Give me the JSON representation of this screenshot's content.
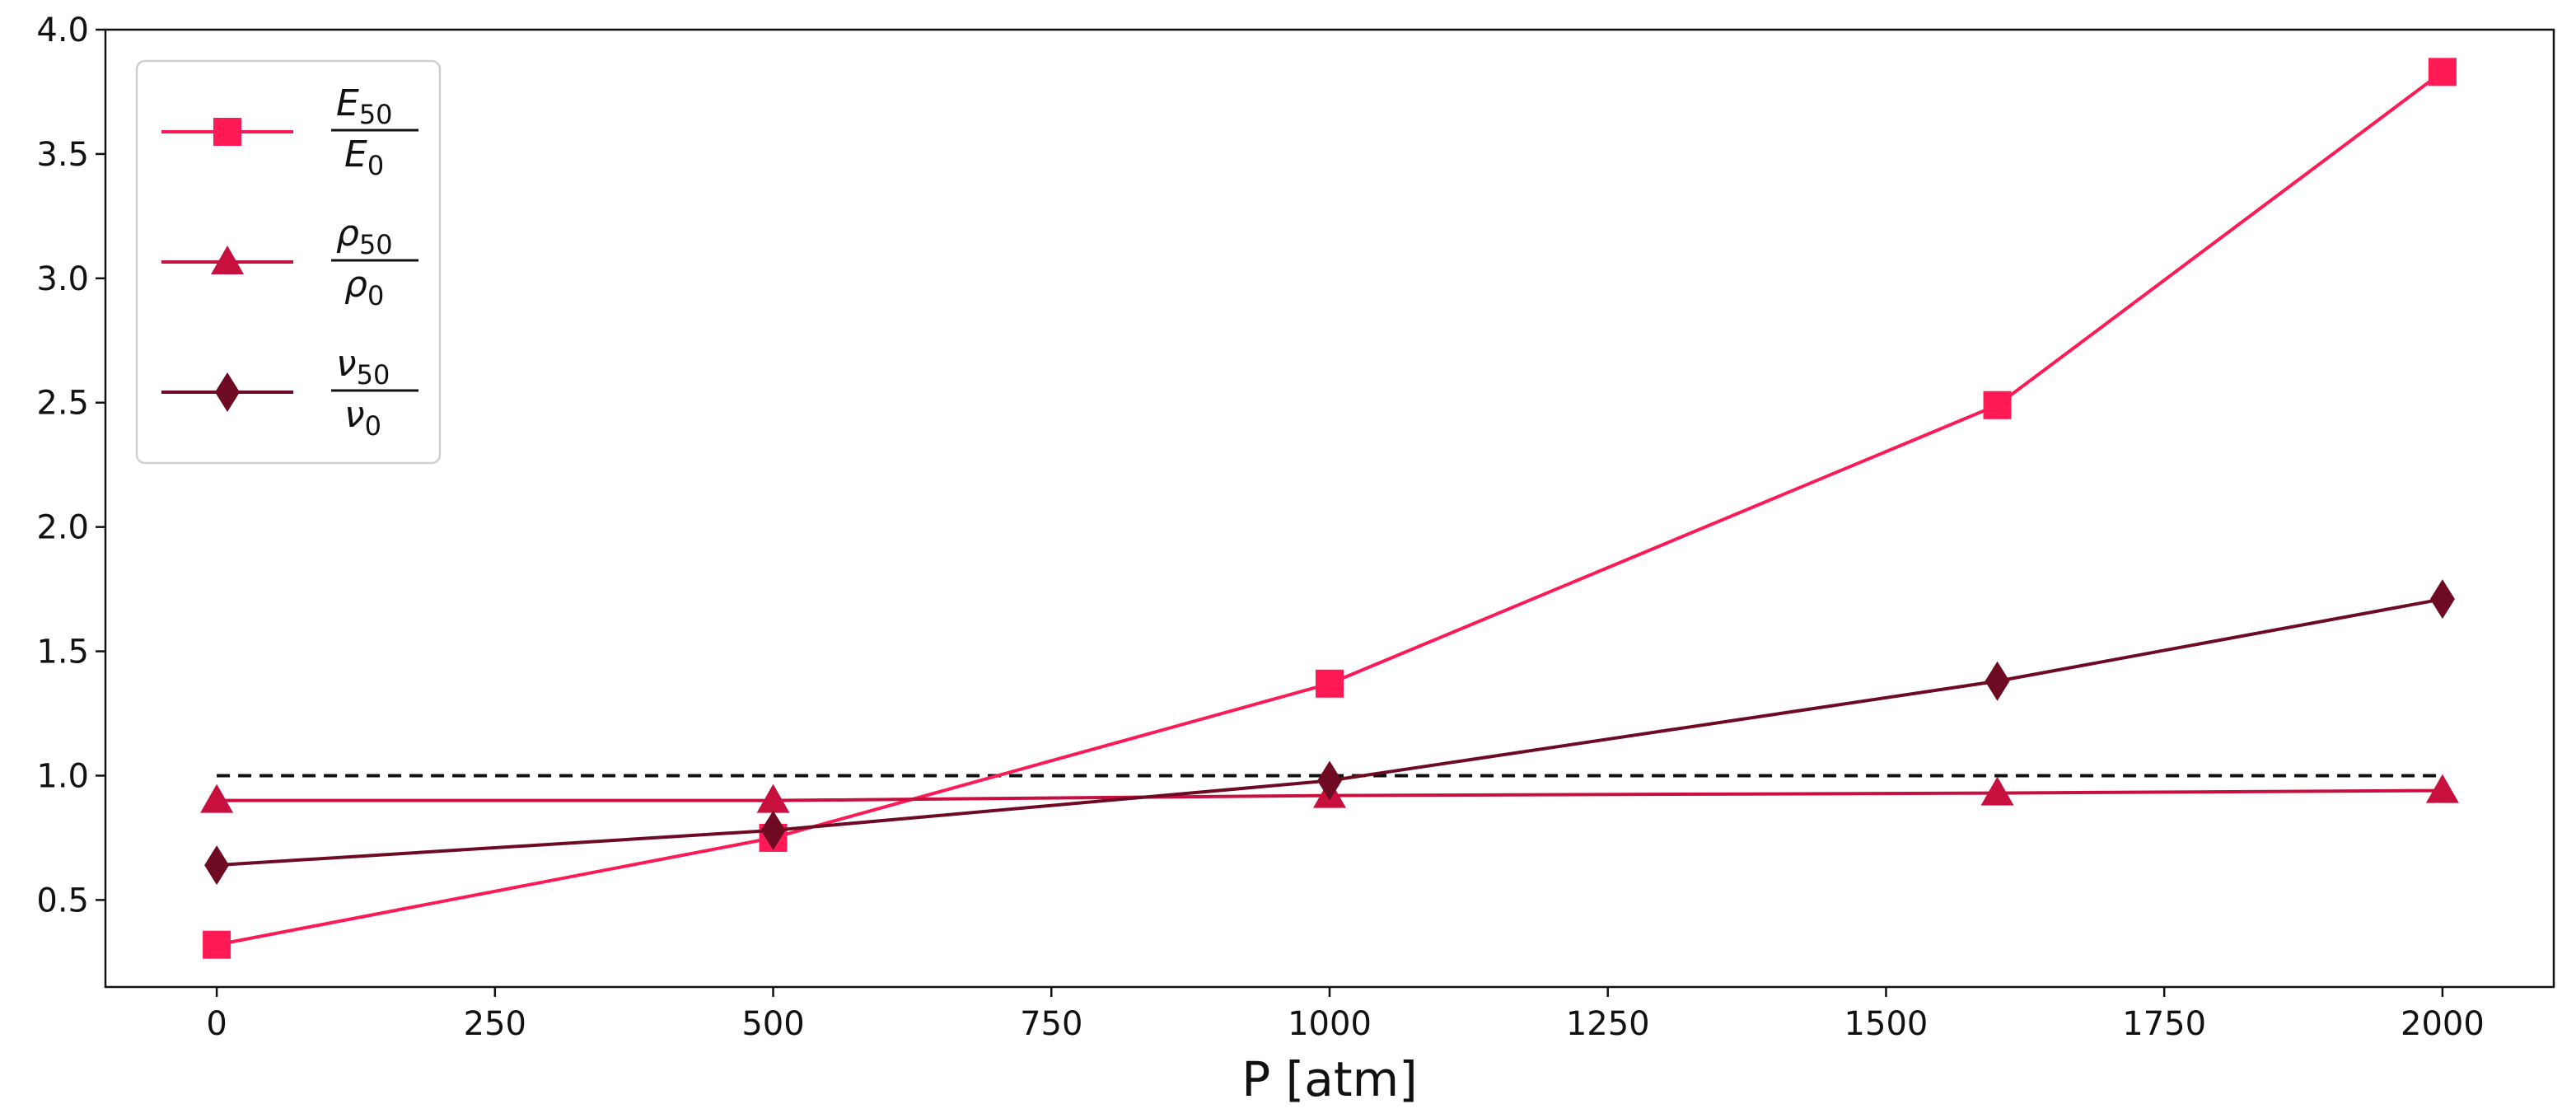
{
  "chart_data": {
    "type": "line",
    "xlabel": "P [atm]",
    "ylabel": "",
    "title": "",
    "xlim": [
      -100,
      2100
    ],
    "ylim": [
      0.15,
      4.0
    ],
    "x_ticks": [
      0,
      250,
      500,
      750,
      1000,
      1250,
      1500,
      1750,
      2000
    ],
    "y_ticks": [
      0.5,
      1.0,
      1.5,
      2.0,
      2.5,
      3.0,
      3.5,
      4.0
    ],
    "y_tick_labels": [
      "0.5",
      "1.0",
      "1.5",
      "2.0",
      "2.5",
      "3.0",
      "3.5",
      "4.0"
    ],
    "grid": false,
    "legend_position": "top-left",
    "reference_line": {
      "y": 1.0,
      "style": "dashed",
      "color": "#111111"
    },
    "series": [
      {
        "name": "E50/E0",
        "legend": {
          "var": "E",
          "sub_num": "50",
          "sub_den": "0"
        },
        "color": "#ff1a55",
        "marker": "square",
        "x": [
          0,
          500,
          1000,
          1600,
          2000
        ],
        "values": [
          0.32,
          0.75,
          1.37,
          2.49,
          3.83
        ]
      },
      {
        "name": "ρ50/ρ0",
        "legend": {
          "var": "ρ",
          "sub_num": "50",
          "sub_den": "0"
        },
        "color": "#c8103e",
        "marker": "triangle",
        "x": [
          0,
          500,
          1000,
          1600,
          2000
        ],
        "values": [
          0.9,
          0.9,
          0.92,
          0.93,
          0.94
        ]
      },
      {
        "name": "ν50/ν0",
        "legend": {
          "var": "ν",
          "sub_num": "50",
          "sub_den": "0"
        },
        "color": "#6e0a22",
        "marker": "diamond",
        "x": [
          0,
          500,
          1000,
          1600,
          2000
        ],
        "values": [
          0.64,
          0.78,
          0.98,
          1.38,
          1.71
        ]
      }
    ]
  }
}
